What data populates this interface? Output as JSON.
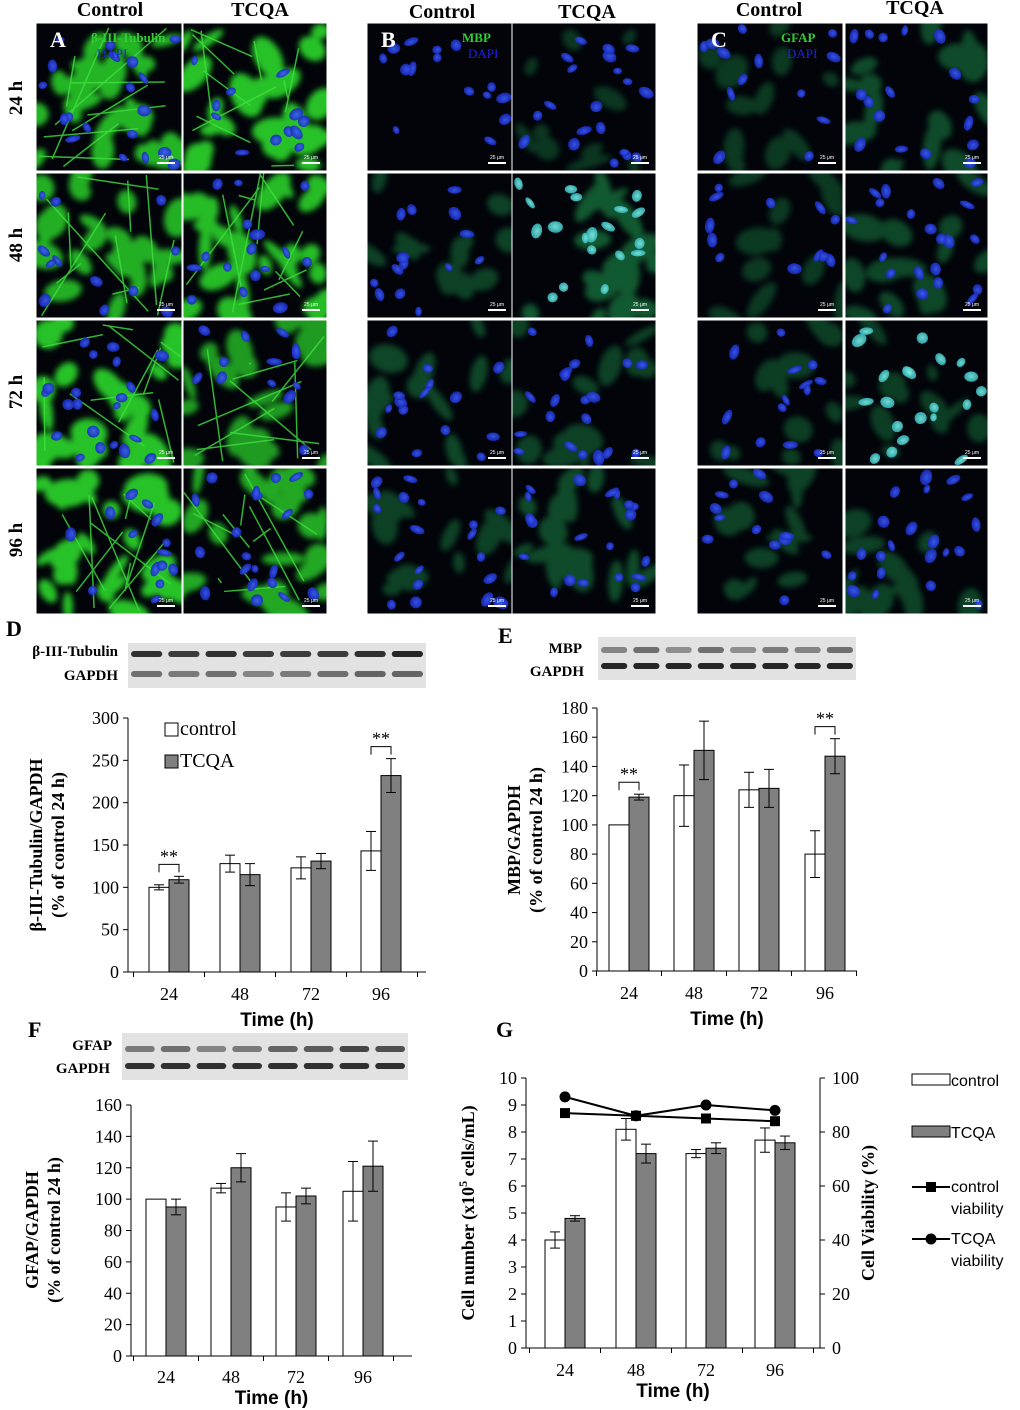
{
  "micrographs": {
    "column_headers": [
      "Control",
      "TCQA"
    ],
    "time_labels": [
      "24 h",
      "48 h",
      "72 h",
      "96 h"
    ],
    "scale_bar_text": "25 μm",
    "panels": [
      {
        "letter": "A",
        "stain_label": "β-III-Tubulin",
        "counterstain_label": "DAPI",
        "stain_color": "#33cc33",
        "counterstain_color": "#2222dd"
      },
      {
        "letter": "B",
        "stain_label": "MBP",
        "counterstain_label": "DAPI",
        "stain_color": "#33cc33",
        "counterstain_color": "#2222dd"
      },
      {
        "letter": "C",
        "stain_label": "GFAP",
        "counterstain_label": "DAPI",
        "stain_color": "#33cc33",
        "counterstain_color": "#2222dd"
      }
    ]
  },
  "blots": {
    "D": {
      "letter": "D",
      "rows": [
        "β-III-Tubulin",
        "GAPDH"
      ]
    },
    "E": {
      "letter": "E",
      "rows": [
        "MBP",
        "GAPDH"
      ]
    },
    "F": {
      "letter": "F",
      "rows": [
        "GFAP",
        "GAPDH"
      ]
    }
  },
  "chart_data": [
    {
      "panel": "D",
      "type": "bar",
      "categories": [
        "24",
        "48",
        "72",
        "96"
      ],
      "xlabel": "Time (h)",
      "ylabel": "β-III-Tubulin/GAPDH (% of control 24 h)",
      "ylim": [
        0,
        300
      ],
      "yticks": [
        0,
        50,
        100,
        150,
        200,
        250,
        300
      ],
      "legend": "top-left",
      "grid": false,
      "series": [
        {
          "name": "control",
          "values": [
            100,
            128,
            123,
            143
          ],
          "errors": [
            3,
            10,
            13,
            23
          ],
          "fill": "#ffffff"
        },
        {
          "name": "TCQA",
          "values": [
            109,
            115,
            131,
            232
          ],
          "errors": [
            4,
            13,
            9,
            20
          ],
          "fill": "#808080"
        }
      ],
      "annotations": [
        {
          "category": "24",
          "text": "**"
        },
        {
          "category": "96",
          "text": "**"
        }
      ]
    },
    {
      "panel": "E",
      "type": "bar",
      "categories": [
        "24",
        "48",
        "72",
        "96"
      ],
      "xlabel": "Time (h)",
      "ylabel": "MBP/GAPDH (% of control 24 h)",
      "ylim": [
        0,
        180
      ],
      "yticks": [
        0,
        20,
        40,
        60,
        80,
        100,
        120,
        140,
        160,
        180
      ],
      "legend": "none",
      "grid": false,
      "series": [
        {
          "name": "control",
          "values": [
            100,
            120,
            124,
            80
          ],
          "errors": [
            0,
            21,
            12,
            16
          ],
          "fill": "#ffffff"
        },
        {
          "name": "TCQA",
          "values": [
            119,
            151,
            125,
            147
          ],
          "errors": [
            2,
            20,
            13,
            12
          ],
          "fill": "#808080"
        }
      ],
      "annotations": [
        {
          "category": "24",
          "text": "**"
        },
        {
          "category": "96",
          "text": "**"
        }
      ]
    },
    {
      "panel": "F",
      "type": "bar",
      "categories": [
        "24",
        "48",
        "72",
        "96"
      ],
      "xlabel": "Time (h)",
      "ylabel": "GFAP/GAPDH (% of control 24 h)",
      "ylim": [
        0,
        160
      ],
      "yticks": [
        0,
        20,
        40,
        60,
        80,
        100,
        120,
        140,
        160
      ],
      "legend": "none",
      "grid": false,
      "series": [
        {
          "name": "control",
          "values": [
            100,
            107,
            95,
            105
          ],
          "errors": [
            0,
            3,
            9,
            19
          ],
          "fill": "#ffffff"
        },
        {
          "name": "TCQA",
          "values": [
            95,
            120,
            102,
            121
          ],
          "errors": [
            5,
            9,
            5,
            16
          ],
          "fill": "#808080"
        }
      ],
      "annotations": []
    },
    {
      "panel": "G",
      "type": "bar",
      "categories": [
        "24",
        "48",
        "72",
        "96"
      ],
      "xlabel": "Time (h)",
      "ylabel": "Cell number (x10^5 cells/mL)",
      "ylabel_parts": [
        "Cell number (x10",
        "5",
        " cells/mL)"
      ],
      "y2label": "Cell Viability (%)",
      "ylim": [
        0,
        10
      ],
      "yticks": [
        0,
        1,
        2,
        3,
        4,
        5,
        6,
        7,
        8,
        9,
        10
      ],
      "y2lim": [
        0,
        100
      ],
      "y2ticks": [
        0,
        20,
        40,
        60,
        80,
        100
      ],
      "legend": "right",
      "grid": false,
      "series": [
        {
          "name": "control",
          "values": [
            4.0,
            8.1,
            7.2,
            7.7
          ],
          "errors": [
            0.3,
            0.4,
            0.15,
            0.45
          ],
          "fill": "#ffffff"
        },
        {
          "name": "TCQA",
          "values": [
            4.8,
            7.2,
            7.4,
            7.6
          ],
          "errors": [
            0.1,
            0.35,
            0.2,
            0.25
          ],
          "fill": "#808080"
        }
      ],
      "line_series": [
        {
          "name": "control viability",
          "axis": "y2",
          "marker": "square",
          "values": [
            87,
            86,
            85,
            84
          ],
          "errors": [
            0.5,
            0.5,
            0.5,
            0.5
          ]
        },
        {
          "name": "TCQA viability",
          "axis": "y2",
          "marker": "circle",
          "values": [
            93,
            86,
            90,
            88
          ],
          "errors": [
            0.8,
            0.5,
            2,
            1.5
          ]
        }
      ]
    }
  ]
}
